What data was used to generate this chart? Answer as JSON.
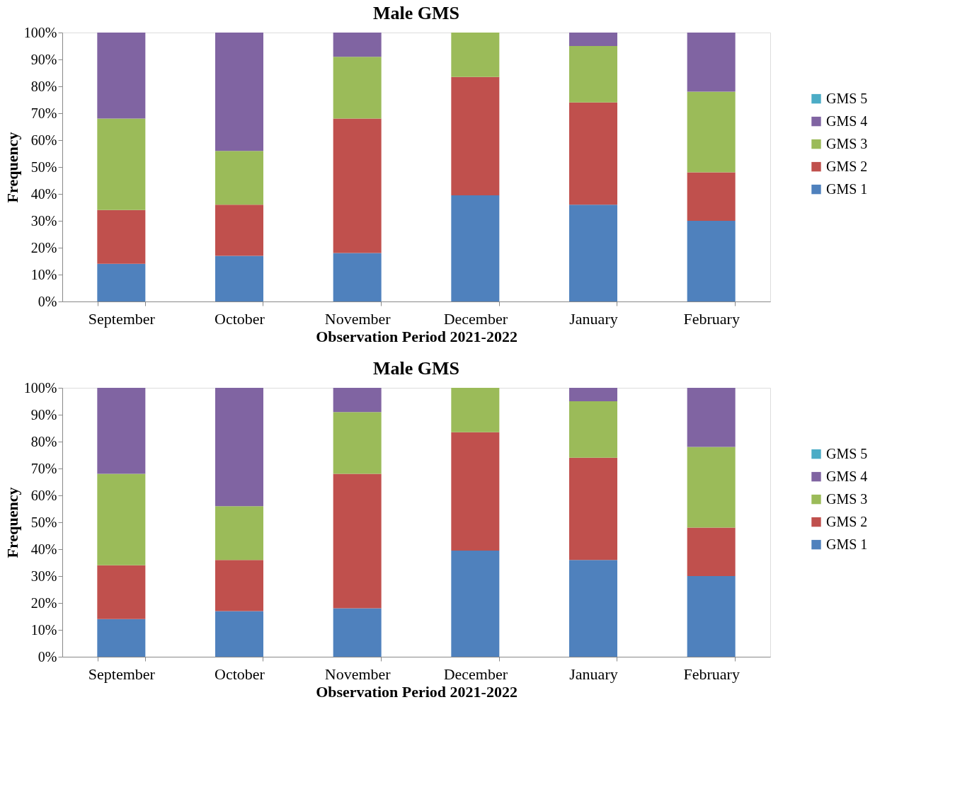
{
  "chart_data": [
    {
      "type": "bar",
      "stacked": true,
      "title": "Male GMS",
      "xlabel": "Observation Period 2021-2022",
      "ylabel": "Frequency",
      "categories": [
        "September",
        "October",
        "November",
        "December",
        "January",
        "February"
      ],
      "series": [
        {
          "name": "GMS 1",
          "color": "#4f81bd",
          "values": [
            14,
            17,
            18,
            39.5,
            36,
            30
          ]
        },
        {
          "name": "GMS 2",
          "color": "#c0504d",
          "values": [
            20,
            19,
            50,
            44,
            38,
            18
          ]
        },
        {
          "name": "GMS 3",
          "color": "#9bbb59",
          "values": [
            34,
            20,
            23,
            16.5,
            21,
            30
          ]
        },
        {
          "name": "GMS 4",
          "color": "#8064a2",
          "values": [
            32,
            44,
            9,
            0,
            5,
            22
          ]
        },
        {
          "name": "GMS 5",
          "color": "#4bacc6",
          "values": [
            0,
            0,
            0,
            0,
            0,
            0
          ]
        }
      ],
      "ylim": [
        0,
        100
      ],
      "yticks": [
        {
          "value": 0,
          "label": "0%"
        },
        {
          "value": 10,
          "label": "10%"
        },
        {
          "value": 20,
          "label": "20%"
        },
        {
          "value": 30,
          "label": "30%"
        },
        {
          "value": 40,
          "label": "40%"
        },
        {
          "value": 50,
          "label": "50%"
        },
        {
          "value": 60,
          "label": "60%"
        },
        {
          "value": 70,
          "label": "70%"
        },
        {
          "value": 80,
          "label": "80%"
        },
        {
          "value": 90,
          "label": "90%"
        },
        {
          "value": 100,
          "label": "100%"
        }
      ],
      "grid": false,
      "legend": "right"
    },
    {
      "type": "bar",
      "stacked": true,
      "title": "Male GMS",
      "xlabel": "Observation Period 2021-2022",
      "ylabel": "Frequency",
      "categories": [
        "September",
        "October",
        "November",
        "December",
        "January",
        "February"
      ],
      "series": [
        {
          "name": "GMS 1",
          "color": "#4f81bd",
          "values": [
            14,
            17,
            18,
            39.5,
            36,
            30
          ]
        },
        {
          "name": "GMS 2",
          "color": "#c0504d",
          "values": [
            20,
            19,
            50,
            44,
            38,
            18
          ]
        },
        {
          "name": "GMS 3",
          "color": "#9bbb59",
          "values": [
            34,
            20,
            23,
            16.5,
            21,
            30
          ]
        },
        {
          "name": "GMS 4",
          "color": "#8064a2",
          "values": [
            32,
            44,
            9,
            0,
            5,
            22
          ]
        },
        {
          "name": "GMS 5",
          "color": "#4bacc6",
          "values": [
            0,
            0,
            0,
            0,
            0,
            0
          ]
        }
      ],
      "ylim": [
        0,
        100
      ],
      "yticks": [
        {
          "value": 0,
          "label": "0%"
        },
        {
          "value": 10,
          "label": "10%"
        },
        {
          "value": 20,
          "label": "20%"
        },
        {
          "value": 30,
          "label": "30%"
        },
        {
          "value": 40,
          "label": "40%"
        },
        {
          "value": 50,
          "label": "50%"
        },
        {
          "value": 60,
          "label": "60%"
        },
        {
          "value": 70,
          "label": "70%"
        },
        {
          "value": 80,
          "label": "80%"
        },
        {
          "value": 90,
          "label": "90%"
        },
        {
          "value": 100,
          "label": "100%"
        }
      ],
      "grid": false,
      "legend": "right"
    }
  ]
}
